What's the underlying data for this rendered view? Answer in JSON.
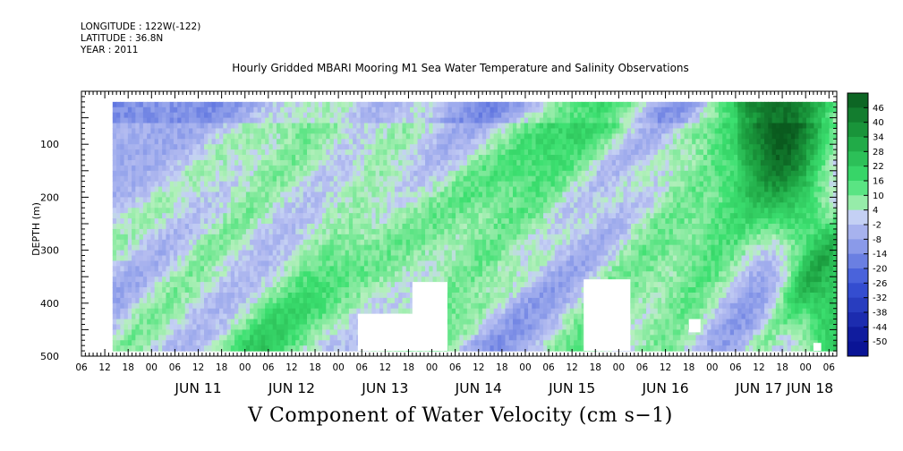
{
  "header": {
    "longitude": "LONGITUDE : 122W(-122)",
    "latitude": "LATITUDE : 36.8N",
    "year": "YEAR : 2011"
  },
  "colors": {
    "negative_strong": "#0a1496",
    "negative_light": "#b4bcf0",
    "positive_light": "#b4f0bc",
    "positive_strong": "#0a5a1e",
    "missing": "#ffffff"
  },
  "chart_data": {
    "type": "heatmap",
    "title": "Hourly Gridded MBARI Mooring M1 Sea Water Temperature and Salinity Observations",
    "xlabel": "V Component of Water Velocity (cm s−1)",
    "ylabel": "DEPTH (m)",
    "ylim": [
      500,
      0
    ],
    "y_ticks": [
      "100",
      "200",
      "300",
      "400",
      "500"
    ],
    "x_range": [
      "2011-06-10 06:00",
      "2011-06-18 08:00"
    ],
    "x_hour_ticks": [
      "06",
      "12",
      "18",
      "00",
      "06",
      "12",
      "18",
      "00",
      "06",
      "12",
      "18",
      "00",
      "06",
      "12",
      "18",
      "00",
      "06",
      "12",
      "18",
      "00",
      "06",
      "12",
      "18",
      "00",
      "06",
      "12",
      "18",
      "00",
      "06",
      "12",
      "18",
      "00",
      "06"
    ],
    "x_day_labels": [
      "JUN 11",
      "JUN 12",
      "JUN 13",
      "JUN 14",
      "JUN 15",
      "JUN 16",
      "JUN 17",
      "JUN 18"
    ],
    "data_range_time": [
      "2011-06-10 14:00",
      "2011-06-18 08:00"
    ],
    "data_range_depth": [
      20,
      490
    ],
    "colorbar_levels": [
      "46",
      "40",
      "34",
      "28",
      "22",
      "16",
      "10",
      "4",
      "-2",
      "-8",
      "-14",
      "-20",
      "-26",
      "-32",
      "-38",
      "-44",
      "-50"
    ],
    "value_range": [
      -50,
      52
    ]
  }
}
